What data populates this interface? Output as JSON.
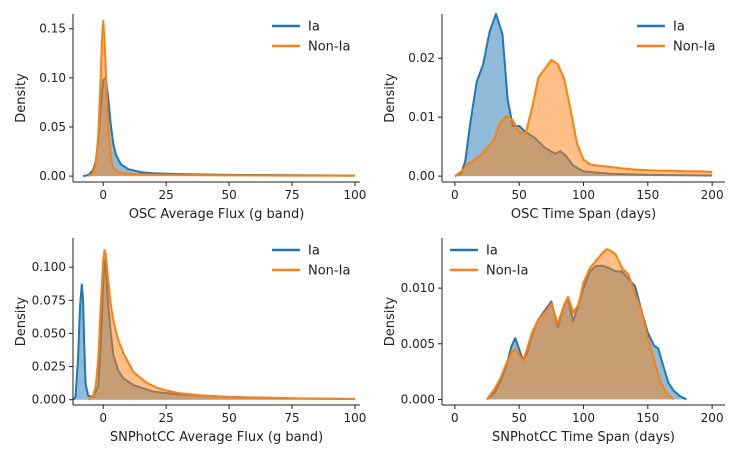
{
  "figure": {
    "colors": {
      "ia": "#1f77b4",
      "nonia": "#ff7f0e"
    }
  },
  "chart_data": [
    {
      "type": "area",
      "title": "",
      "xlabel": "OSC Average Flux (g band)",
      "ylabel": "Density",
      "xlim": [
        -12,
        102
      ],
      "ylim": [
        -0.006,
        0.165
      ],
      "xticks": [
        0,
        25,
        50,
        75,
        100
      ],
      "xtick_labels": [
        "0",
        "25",
        "50",
        "75",
        "100"
      ],
      "yticks": [
        0.0,
        0.05,
        0.1,
        0.15
      ],
      "ytick_labels": [
        "0.00",
        "0.05",
        "0.10",
        "0.15"
      ],
      "legend": {
        "position": "top-right",
        "entries": [
          "Ia",
          "Non-Ia"
        ]
      },
      "series": [
        {
          "name": "Ia",
          "color": "#1f77b4",
          "x": [
            -8,
            -6,
            -4,
            -3,
            -2,
            -1,
            0,
            1,
            2,
            3,
            4,
            5,
            7,
            10,
            15,
            20,
            30,
            50,
            75,
            100
          ],
          "y": [
            0.0,
            0.001,
            0.006,
            0.015,
            0.035,
            0.07,
            0.098,
            0.1,
            0.08,
            0.052,
            0.033,
            0.022,
            0.012,
            0.007,
            0.004,
            0.003,
            0.002,
            0.0012,
            0.0008,
            0.0005
          ]
        },
        {
          "name": "Non-Ia",
          "color": "#ff7f0e",
          "x": [
            -6,
            -4,
            -3,
            -2,
            -1,
            -0.5,
            0,
            0.5,
            1,
            2,
            3,
            4,
            6,
            8,
            12,
            20,
            40,
            70,
            100
          ],
          "y": [
            0.0,
            0.003,
            0.012,
            0.04,
            0.1,
            0.14,
            0.158,
            0.14,
            0.11,
            0.05,
            0.02,
            0.008,
            0.004,
            0.003,
            0.002,
            0.0015,
            0.001,
            0.0005,
            0.0003
          ]
        }
      ]
    },
    {
      "type": "area",
      "title": "",
      "xlabel": "OSC Time Span (days)",
      "ylabel": "Density",
      "xlim": [
        -10,
        210
      ],
      "ylim": [
        -0.001,
        0.0275
      ],
      "xticks": [
        0,
        50,
        100,
        150,
        200
      ],
      "xtick_labels": [
        "0",
        "50",
        "100",
        "150",
        "200"
      ],
      "yticks": [
        0.0,
        0.01,
        0.02
      ],
      "ytick_labels": [
        "0.00",
        "0.01",
        "0.02"
      ],
      "legend": {
        "position": "top-right",
        "entries": [
          "Ia",
          "Non-Ia"
        ]
      },
      "series": [
        {
          "name": "Ia",
          "color": "#1f77b4",
          "x": [
            0,
            5,
            8,
            12,
            17,
            22,
            27,
            32,
            37,
            41,
            45,
            50,
            55,
            62,
            70,
            78,
            82,
            86,
            92,
            100,
            120,
            150,
            200
          ],
          "y": [
            0.0,
            0.0005,
            0.0025,
            0.009,
            0.016,
            0.019,
            0.0245,
            0.0275,
            0.024,
            0.013,
            0.0085,
            0.0085,
            0.0075,
            0.0065,
            0.0048,
            0.0038,
            0.0042,
            0.0035,
            0.0018,
            0.0008,
            0.0004,
            0.0002,
            0.0001
          ]
        },
        {
          "name": "Non-Ia",
          "color": "#ff7f0e",
          "x": [
            0,
            5,
            10,
            20,
            30,
            35,
            40,
            45,
            50,
            55,
            60,
            65,
            70,
            75,
            80,
            85,
            90,
            95,
            100,
            105,
            110,
            120,
            130,
            140,
            150,
            160,
            170,
            180,
            190,
            200
          ],
          "y": [
            0.0,
            0.0008,
            0.002,
            0.0035,
            0.006,
            0.009,
            0.0102,
            0.0095,
            0.0075,
            0.0072,
            0.0115,
            0.0168,
            0.0182,
            0.0197,
            0.019,
            0.0165,
            0.0112,
            0.0055,
            0.0028,
            0.002,
            0.0018,
            0.0016,
            0.0013,
            0.0011,
            0.001,
            0.0009,
            0.0009,
            0.0008,
            0.0008,
            0.0007
          ]
        }
      ]
    },
    {
      "type": "area",
      "title": "",
      "xlabel": "SNPhotCC Average Flux (g band)",
      "ylabel": "Density",
      "xlim": [
        -12,
        102
      ],
      "ylim": [
        -0.004,
        0.122
      ],
      "xticks": [
        0,
        25,
        50,
        75,
        100
      ],
      "xtick_labels": [
        "0",
        "25",
        "50",
        "75",
        "100"
      ],
      "yticks": [
        0.0,
        0.025,
        0.05,
        0.075,
        0.1
      ],
      "ytick_labels": [
        "0.000",
        "0.025",
        "0.050",
        "0.075",
        "0.100"
      ],
      "legend": {
        "position": "top-right",
        "entries": [
          "Ia",
          "Non-Ia"
        ]
      },
      "series": [
        {
          "name": "Ia",
          "color": "#1f77b4",
          "x": [
            -12,
            -11,
            -10,
            -9.2,
            -8.5,
            -8,
            -7.5,
            -7,
            -6,
            -4,
            -2,
            -1,
            0,
            0.5,
            1,
            2,
            3,
            4,
            6,
            8,
            12,
            20,
            30,
            50,
            75,
            100
          ],
          "y": [
            0.0,
            0.002,
            0.03,
            0.07,
            0.087,
            0.075,
            0.04,
            0.012,
            0.003,
            0.002,
            0.01,
            0.04,
            0.088,
            0.106,
            0.1,
            0.072,
            0.05,
            0.034,
            0.022,
            0.016,
            0.011,
            0.006,
            0.004,
            0.002,
            0.001,
            0.0005
          ]
        },
        {
          "name": "Non-Ia",
          "color": "#ff7f0e",
          "x": [
            -6,
            -4,
            -3,
            -2,
            -1,
            0,
            0.5,
            1,
            2,
            3,
            4,
            5,
            6,
            8,
            10,
            12,
            15,
            18,
            22,
            25,
            30,
            40,
            50,
            75,
            100
          ],
          "y": [
            0.0,
            0.003,
            0.01,
            0.03,
            0.07,
            0.105,
            0.113,
            0.11,
            0.09,
            0.072,
            0.06,
            0.052,
            0.045,
            0.035,
            0.028,
            0.021,
            0.016,
            0.012,
            0.0085,
            0.007,
            0.005,
            0.003,
            0.002,
            0.001,
            0.0005
          ]
        }
      ]
    },
    {
      "type": "area",
      "title": "",
      "xlabel": "SNPhotCC Time Span (days)",
      "ylabel": "Density",
      "xlim": [
        -10,
        210
      ],
      "ylim": [
        -0.0005,
        0.0145
      ],
      "xticks": [
        0,
        50,
        100,
        150,
        200
      ],
      "xtick_labels": [
        "0",
        "50",
        "100",
        "150",
        "200"
      ],
      "yticks": [
        0.0,
        0.005,
        0.01
      ],
      "ytick_labels": [
        "0.000",
        "0.005",
        "0.010"
      ],
      "legend": {
        "position": "top-left",
        "entries": [
          "Ia",
          "Non-Ia"
        ]
      },
      "series": [
        {
          "name": "Ia",
          "color": "#1f77b4",
          "x": [
            25,
            30,
            35,
            40,
            44,
            47,
            50,
            53,
            56,
            60,
            65,
            70,
            75,
            80,
            85,
            88,
            92,
            96,
            100,
            105,
            110,
            115,
            120,
            125,
            130,
            135,
            140,
            145,
            150,
            155,
            158,
            162,
            166,
            170,
            175,
            180
          ],
          "y": [
            0.0,
            0.0005,
            0.0015,
            0.003,
            0.0048,
            0.0055,
            0.0045,
            0.0035,
            0.0042,
            0.0058,
            0.0072,
            0.008,
            0.0088,
            0.0065,
            0.0085,
            0.009,
            0.007,
            0.0085,
            0.01,
            0.0115,
            0.012,
            0.012,
            0.0118,
            0.0115,
            0.0115,
            0.0108,
            0.0102,
            0.008,
            0.006,
            0.0048,
            0.0046,
            0.003,
            0.0015,
            0.0008,
            0.0003,
            0.0
          ]
        },
        {
          "name": "Non-Ia",
          "color": "#ff7f0e",
          "x": [
            25,
            30,
            35,
            40,
            44,
            47,
            50,
            53,
            56,
            60,
            65,
            70,
            75,
            80,
            85,
            88,
            92,
            96,
            100,
            105,
            110,
            115,
            118,
            122,
            125,
            130,
            135,
            140,
            145,
            150,
            155,
            160,
            165,
            170
          ],
          "y": [
            0.0,
            0.0008,
            0.0018,
            0.0032,
            0.0042,
            0.0045,
            0.004,
            0.0035,
            0.0045,
            0.006,
            0.0072,
            0.0078,
            0.0086,
            0.0068,
            0.0085,
            0.0092,
            0.0078,
            0.0085,
            0.0105,
            0.0118,
            0.0125,
            0.0132,
            0.0135,
            0.0133,
            0.013,
            0.0118,
            0.0112,
            0.0095,
            0.008,
            0.0055,
            0.0035,
            0.0015,
            0.0005,
            0.0
          ]
        }
      ]
    }
  ]
}
